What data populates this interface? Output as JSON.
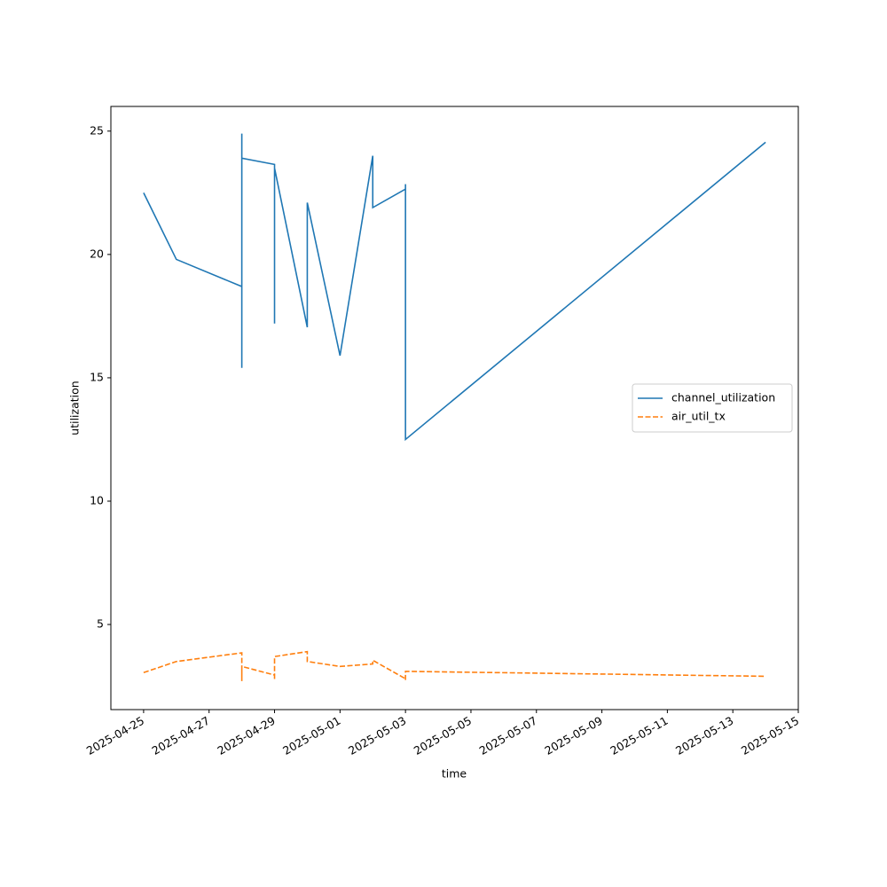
{
  "chart_data": {
    "type": "line",
    "x_label": "time",
    "y_label": "utilization",
    "x": [
      "2025-04-25",
      "2025-04-26",
      "2025-04-28",
      "2025-04-28",
      "2025-04-28",
      "2025-04-28",
      "2025-04-28",
      "2025-04-28",
      "2025-04-29",
      "2025-04-29",
      "2025-04-29",
      "2025-04-30",
      "2025-04-30",
      "2025-05-01",
      "2025-05-02",
      "2025-05-02",
      "2025-05-03",
      "2025-05-03",
      "2025-05-03",
      "2025-05-14"
    ],
    "series": [
      {
        "name": "channel_utilization",
        "color": "#1f77b4",
        "dash": false,
        "values": [
          22.5,
          19.8,
          18.7,
          18.75,
          24.9,
          15.9,
          15.4,
          23.9,
          23.65,
          17.2,
          23.5,
          17.05,
          22.1,
          15.9,
          24.0,
          21.9,
          22.65,
          22.85,
          12.5,
          24.55
        ]
      },
      {
        "name": "air_util_tx",
        "color": "#ff7f0e",
        "dash": true,
        "values": [
          3.05,
          3.5,
          3.85,
          2.9,
          2.75,
          3.15,
          2.7,
          3.3,
          2.95,
          2.75,
          3.7,
          3.9,
          3.5,
          3.3,
          3.4,
          3.55,
          2.8,
          2.75,
          3.1,
          2.9
        ]
      }
    ],
    "xlim": [
      "2025-04-24",
      "2025-05-15"
    ],
    "xticks": [
      "2025-04-25",
      "2025-04-27",
      "2025-04-29",
      "2025-05-01",
      "2025-05-03",
      "2025-05-05",
      "2025-05-07",
      "2025-05-09",
      "2025-05-11",
      "2025-05-13",
      "2025-05-15"
    ],
    "ylim": [
      1.55,
      26.0
    ],
    "yticks": [
      5,
      10,
      15,
      20,
      25
    ],
    "grid": false,
    "legend": "center right"
  }
}
